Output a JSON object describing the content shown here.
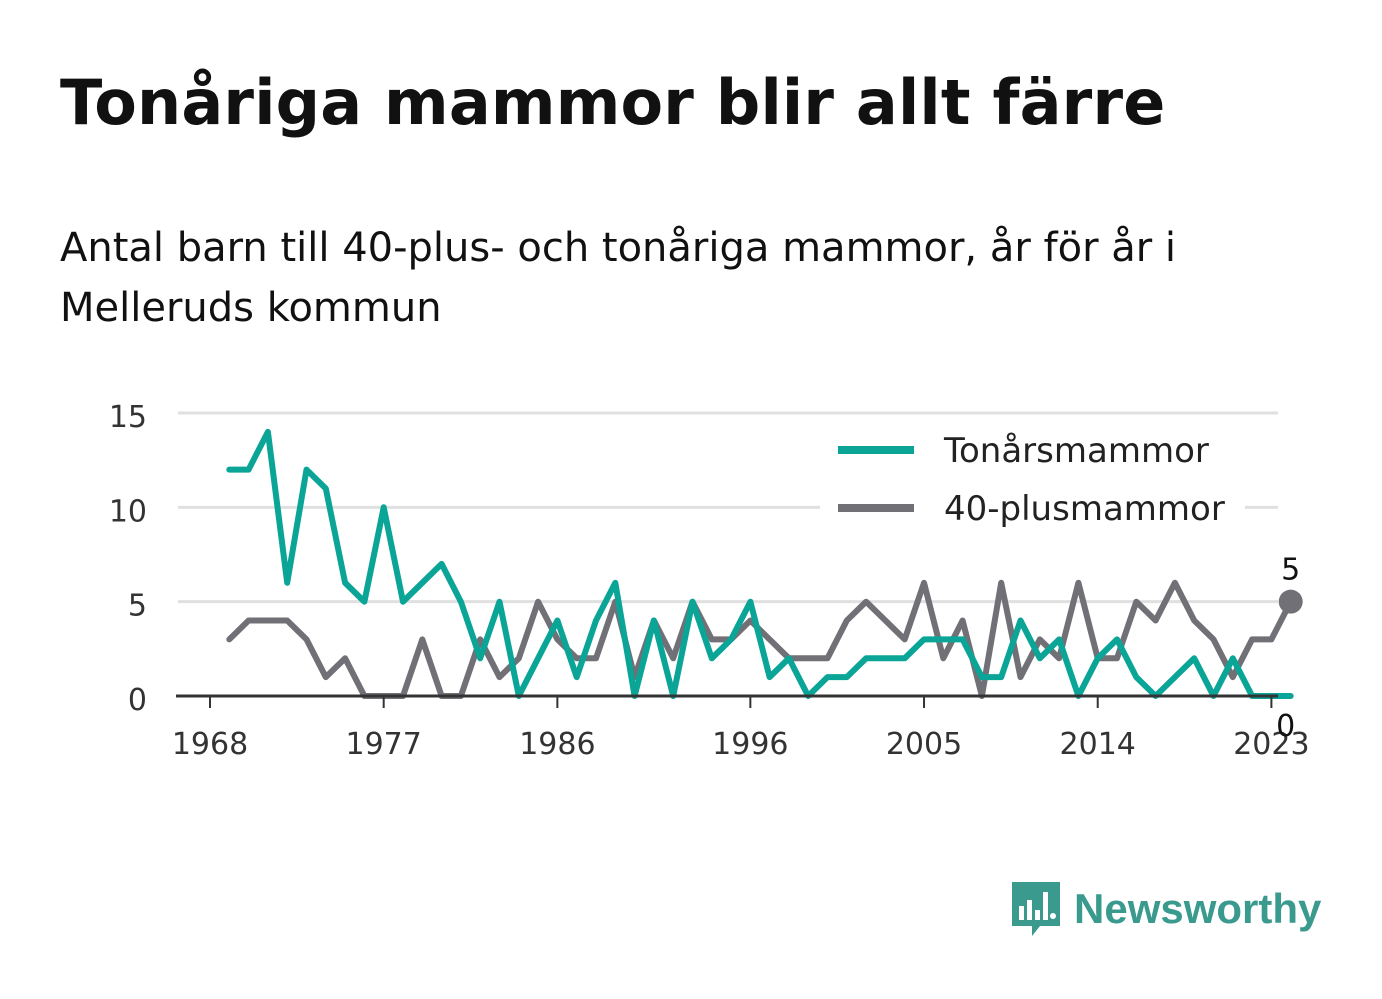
{
  "title": "Tonåriga mammor blir allt färre",
  "subtitle": "Antal barn till 40-plus- och tonåriga mammor, år för år i Melleruds kommun",
  "brand": {
    "name": "Newsworthy",
    "color": "#3a9a8e"
  },
  "colors": {
    "teen": "#0aa597",
    "plus40": "#707076",
    "grid": "#e0e0e0",
    "axis": "#333333"
  },
  "chart_data": {
    "type": "line",
    "x_start": 1969,
    "x_ticks": [
      1968,
      1977,
      1986,
      1996,
      2005,
      2014,
      2023
    ],
    "y_ticks": [
      0,
      5,
      10,
      15
    ],
    "xlim": [
      1968,
      2025
    ],
    "ylim": [
      0,
      15
    ],
    "grid": true,
    "legend_position": "top-right",
    "series": [
      {
        "name": "Tonårsmammor",
        "color": "#0aa597",
        "values": [
          12,
          12,
          14,
          6,
          12,
          11,
          6,
          5,
          10,
          5,
          6,
          7,
          5,
          2,
          5,
          0,
          2,
          4,
          1,
          4,
          6,
          0,
          4,
          0,
          5,
          2,
          3,
          5,
          1,
          2,
          0,
          1,
          1,
          2,
          2,
          2,
          3,
          3,
          3,
          1,
          1,
          4,
          2,
          3,
          0,
          2,
          3,
          1,
          0,
          1,
          2,
          0,
          2,
          0,
          0,
          0
        ],
        "end_label": "0"
      },
      {
        "name": "40-plusmammor",
        "color": "#707076",
        "values": [
          3,
          4,
          4,
          4,
          3,
          1,
          2,
          0,
          0,
          0,
          3,
          0,
          0,
          3,
          1,
          2,
          5,
          3,
          2,
          2,
          5,
          1,
          4,
          2,
          5,
          3,
          3,
          4,
          3,
          2,
          2,
          2,
          4,
          5,
          4,
          3,
          6,
          2,
          4,
          0,
          6,
          1,
          3,
          2,
          6,
          2,
          2,
          5,
          4,
          6,
          4,
          3,
          1,
          3,
          3,
          5
        ],
        "end_label": "5"
      }
    ]
  }
}
